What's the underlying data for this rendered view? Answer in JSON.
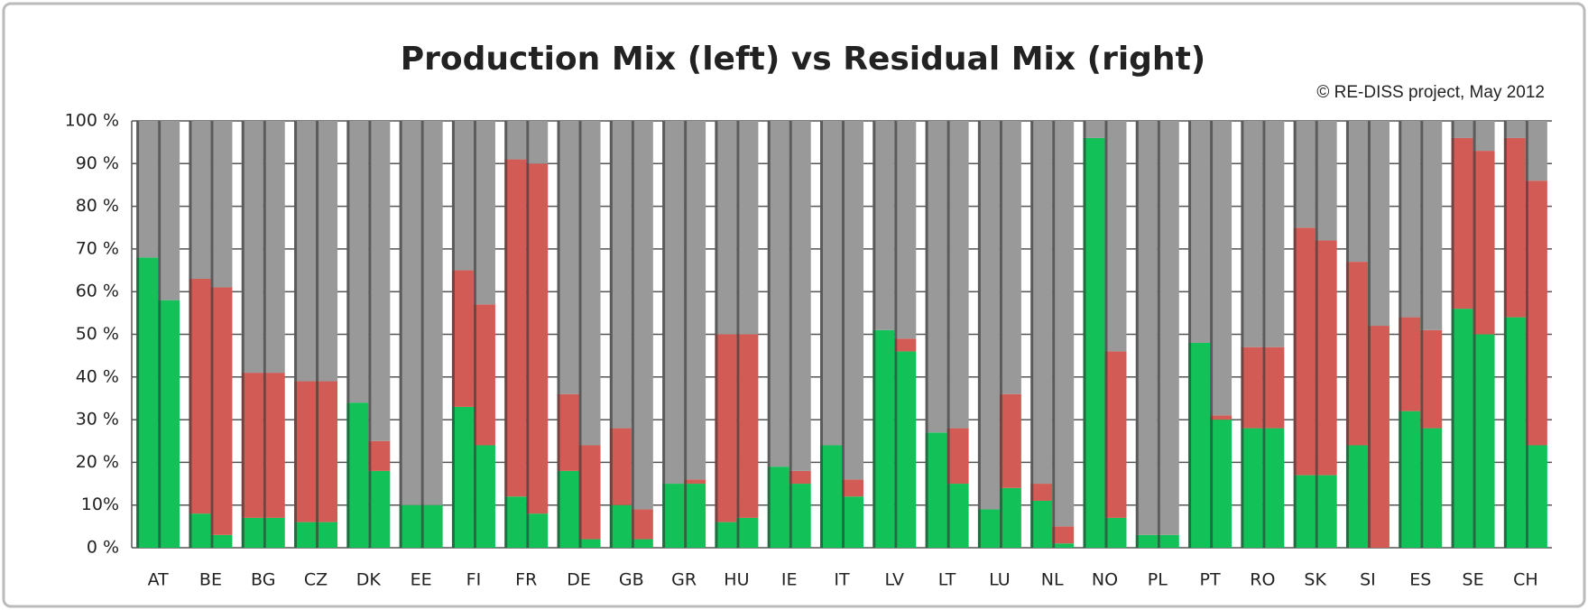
{
  "chart_data": {
    "type": "bar",
    "stacked": true,
    "title": "Production Mix (left) vs Residual Mix (right)",
    "note": "© RE-DISS project, May 2012",
    "categories": [
      "AT",
      "BE",
      "BG",
      "CZ",
      "DK",
      "EE",
      "FI",
      "FR",
      "DE",
      "GB",
      "GR",
      "HU",
      "IE",
      "IT",
      "LV",
      "LT",
      "LU",
      "NL",
      "NO",
      "PL",
      "PT",
      "RO",
      "SK",
      "SI",
      "ES",
      "SE",
      "CH"
    ],
    "groups": [
      {
        "series": [
          {
            "color": "#12c157",
            "values": [
              68,
              8,
              7,
              6,
              34,
              10,
              33,
              12,
              18,
              10,
              15,
              6,
              19,
              24,
              51,
              27,
              9,
              11,
              96,
              3,
              48,
              28,
              17,
              24,
              32,
              56,
              54
            ]
          },
          {
            "color": "#d25c55",
            "values": [
              0,
              55,
              34,
              33,
              0,
              0,
              32,
              79,
              18,
              18,
              0,
              44,
              0,
              0,
              0,
              0,
              0,
              4,
              0,
              0,
              0,
              19,
              58,
              43,
              22,
              40,
              42
            ]
          },
          {
            "color": "#999999",
            "values": [
              32,
              37,
              59,
              61,
              66,
              90,
              35,
              9,
              64,
              72,
              85,
              50,
              81,
              76,
              49,
              73,
              91,
              85,
              4,
              97,
              52,
              53,
              25,
              33,
              46,
              4,
              4
            ]
          }
        ]
      },
      {
        "series": [
          {
            "color": "#12c157",
            "values": [
              58,
              3,
              7,
              6,
              18,
              10,
              24,
              8,
              2,
              2,
              15,
              7,
              15,
              12,
              46,
              15,
              14,
              1,
              7,
              3,
              30,
              28,
              17,
              0,
              28,
              50,
              24
            ]
          },
          {
            "color": "#d25c55",
            "values": [
              0,
              58,
              34,
              33,
              7,
              0,
              33,
              82,
              22,
              7,
              1,
              43,
              3,
              4,
              3,
              13,
              22,
              4,
              39,
              0,
              1,
              19,
              55,
              52,
              23,
              43,
              62
            ]
          },
          {
            "color": "#999999",
            "values": [
              42,
              39,
              59,
              61,
              75,
              90,
              43,
              10,
              76,
              91,
              84,
              50,
              82,
              84,
              51,
              72,
              64,
              95,
              54,
              97,
              69,
              53,
              28,
              48,
              49,
              7,
              14
            ]
          }
        ]
      }
    ],
    "ylim": [
      0,
      100
    ],
    "yticks": [
      {
        "value": 0,
        "label": "0 %"
      },
      {
        "value": 10,
        "label": "10%"
      },
      {
        "value": 20,
        "label": "20 %"
      },
      {
        "value": 30,
        "label": "30 %"
      },
      {
        "value": 40,
        "label": "40 %"
      },
      {
        "value": 50,
        "label": "50 %"
      },
      {
        "value": 60,
        "label": "60 %"
      },
      {
        "value": 70,
        "label": "70 %"
      },
      {
        "value": 80,
        "label": "80 %"
      },
      {
        "value": 90,
        "label": "90 %"
      },
      {
        "value": 100,
        "label": "100 %"
      }
    ],
    "grid": true
  }
}
